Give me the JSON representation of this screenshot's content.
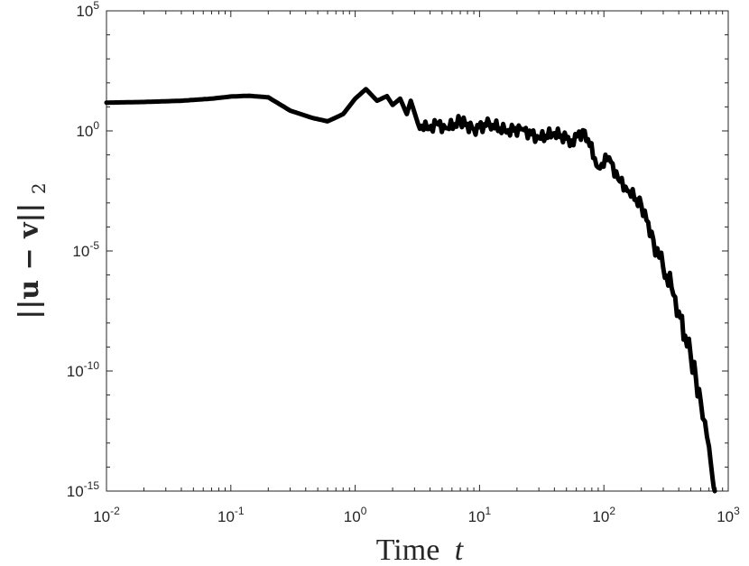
{
  "chart_data": {
    "type": "line",
    "title": "",
    "xlabel": "Time",
    "xlabel_var": "t",
    "ylabel": "||u − v||",
    "ylabel_sub": "2",
    "xscale": "log",
    "yscale": "log",
    "xlim": [
      0.01,
      1000
    ],
    "ylim": [
      1e-15,
      100000
    ],
    "grid": false,
    "legend": "none",
    "xticks": [
      {
        "base": "10",
        "exp": "-2",
        "value": 0.01
      },
      {
        "base": "10",
        "exp": "-1",
        "value": 0.1
      },
      {
        "base": "10",
        "exp": "0",
        "value": 1
      },
      {
        "base": "10",
        "exp": "1",
        "value": 10
      },
      {
        "base": "10",
        "exp": "2",
        "value": 100
      },
      {
        "base": "10",
        "exp": "3",
        "value": 1000
      }
    ],
    "yticks": [
      {
        "base": "10",
        "exp": "-15",
        "value": 1e-15
      },
      {
        "base": "10",
        "exp": "-10",
        "value": 1e-10
      },
      {
        "base": "10",
        "exp": "-5",
        "value": 1e-05
      },
      {
        "base": "10",
        "exp": "0",
        "value": 1
      },
      {
        "base": "10",
        "exp": "5",
        "value": 100000
      }
    ],
    "series": [
      {
        "color": "#000000",
        "x": [
          0.01,
          0.02,
          0.04,
          0.07,
          0.1,
          0.14,
          0.2,
          0.3,
          0.45,
          0.6,
          0.8,
          1.0,
          1.22,
          1.5,
          1.8,
          2.0,
          2.3,
          2.6,
          2.8,
          3.2,
          3.8,
          4.5,
          5.5,
          7,
          9,
          12,
          16,
          22,
          30,
          40,
          55,
          70,
          90,
          110,
          130,
          160,
          200,
          250,
          300,
          350,
          400,
          450,
          500,
          550,
          600,
          650,
          700,
          750,
          780
        ],
        "y": [
          15,
          16,
          18,
          22,
          27,
          29,
          25,
          7,
          3.5,
          2.5,
          5,
          22,
          55,
          18,
          28,
          12,
          22,
          5,
          18,
          2,
          1.2,
          2,
          1.3,
          2.5,
          1.2,
          2,
          1,
          1.2,
          0.5,
          0.8,
          0.4,
          1,
          0.03,
          0.08,
          0.01,
          0.003,
          0.0008,
          3e-05,
          2e-06,
          3e-07,
          3e-08,
          3e-09,
          4e-10,
          5e-11,
          6e-12,
          8e-13,
          7e-14,
          3e-15,
          1e-15
        ]
      }
    ]
  }
}
